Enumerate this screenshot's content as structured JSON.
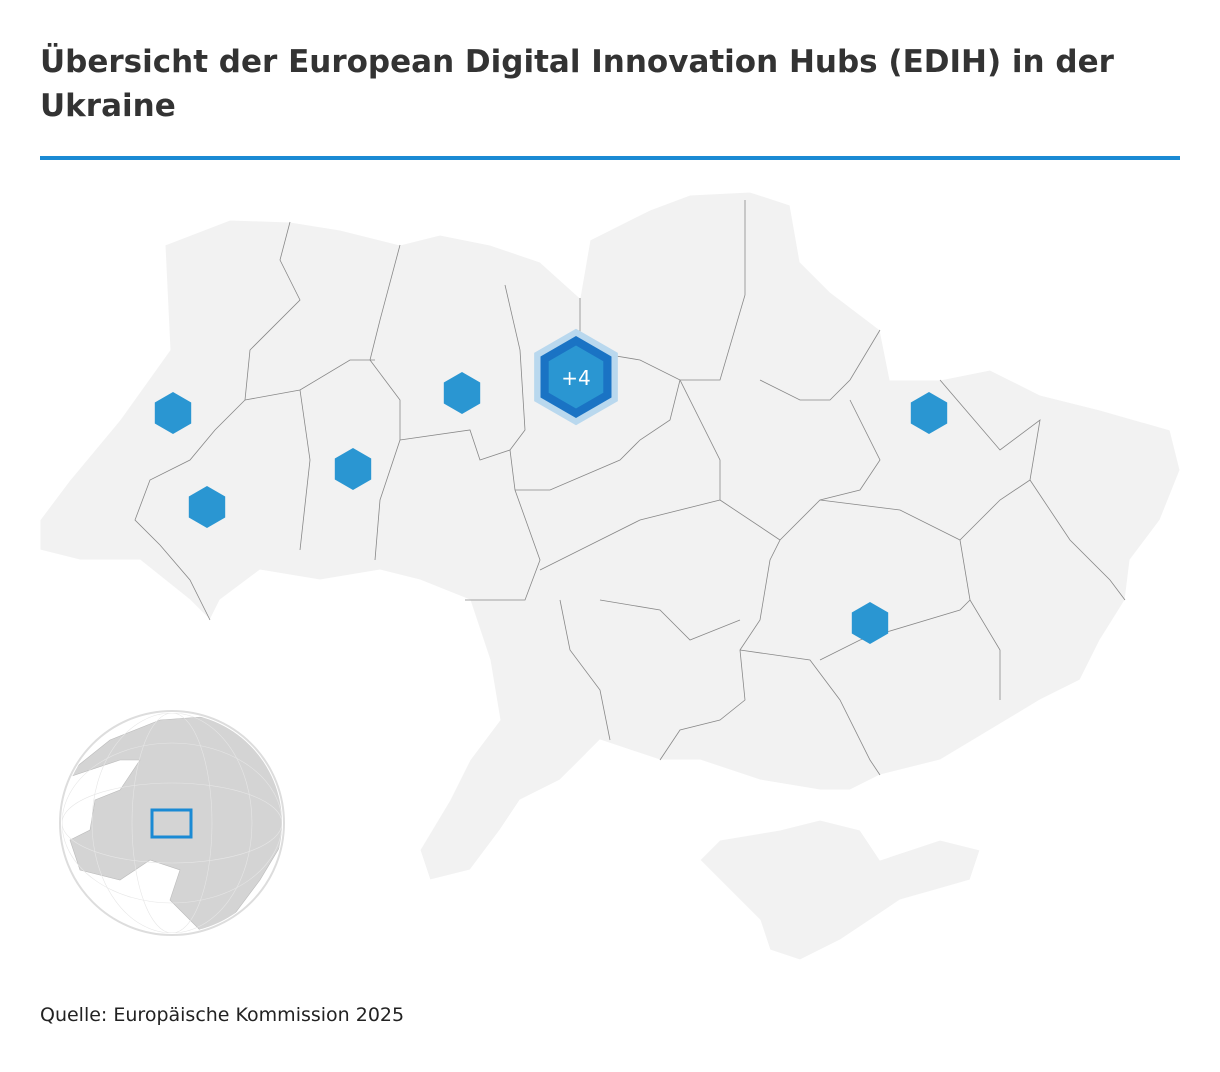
{
  "header": {
    "title": "Übersicht der European Digital Innovation Hubs (EDIH) in der Ukraine"
  },
  "map": {
    "cluster_label": "+4"
  },
  "footer": {
    "source": "Quelle: Europäische Kommission 2025"
  }
}
